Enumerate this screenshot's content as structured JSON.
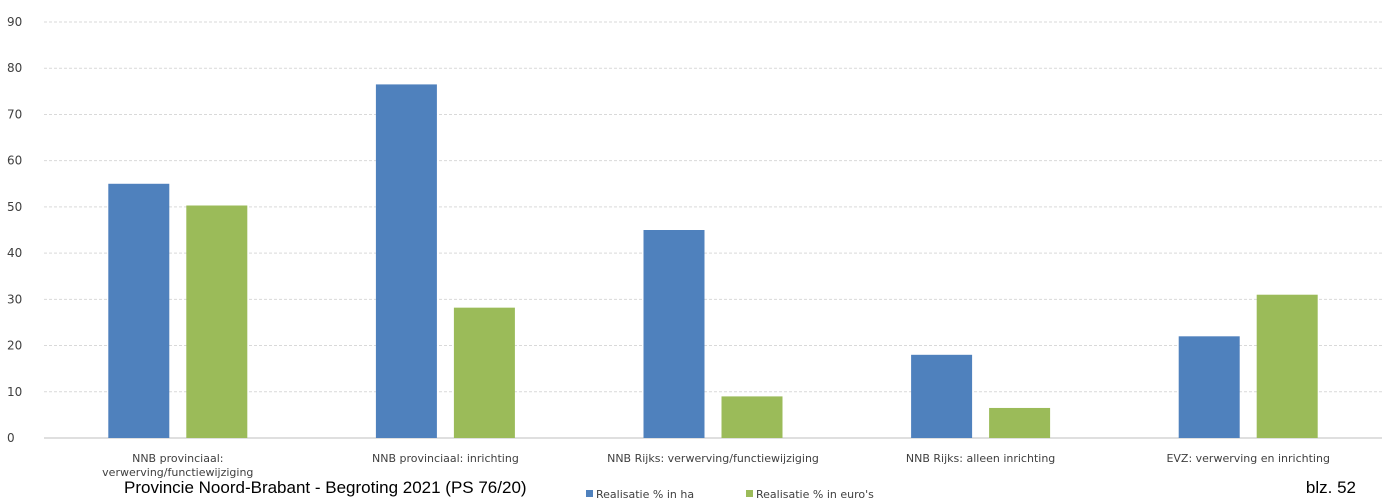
{
  "chart_data": {
    "type": "bar",
    "categories": [
      [
        "NNB provinciaal:",
        "verwerving/functiewijziging"
      ],
      [
        "NNB provinciaal: inrichting"
      ],
      [
        "NNB Rijks: verwerving/functiewijziging"
      ],
      [
        "NNB Rijks: alleen inrichting"
      ],
      [
        "EVZ: verwerving en inrichting"
      ]
    ],
    "series": [
      {
        "name": "Realisatie % in ha",
        "color": "#4f81bd",
        "values": [
          55,
          76.5,
          45,
          18,
          22
        ]
      },
      {
        "name": "Realisatie % in euro's",
        "color": "#9bbb59",
        "values": [
          50.3,
          28.2,
          9,
          6.5,
          31
        ]
      }
    ],
    "ylim": [
      0,
      90
    ],
    "yticks": [
      0,
      10,
      20,
      30,
      40,
      50,
      60,
      70,
      80,
      90
    ],
    "grid": true,
    "legend_position": "bottom"
  },
  "footer": {
    "left": "Provincie Noord-Brabant  -  Begroting 2021 (PS 76/20)",
    "right": "blz.  52"
  }
}
